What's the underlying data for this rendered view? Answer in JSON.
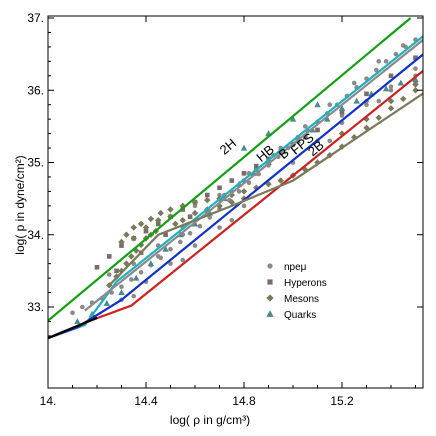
{
  "chart_data": {
    "type": "scatter",
    "xlabel": "log( ρ in g/cm³)",
    "ylabel": "log( p in dyne/cm²)",
    "xlim": [
      14.0,
      15.55
    ],
    "ylim": [
      32.5,
      37.0
    ],
    "xticks": [
      {
        "value": 14.0,
        "label": "14."
      },
      {
        "value": 14.4,
        "label": "14.4"
      },
      {
        "value": 14.8,
        "label": "14.8"
      },
      {
        "value": 15.2,
        "label": "15.2"
      }
    ],
    "yticks": [
      {
        "value": 33,
        "label": "33."
      },
      {
        "value": 34,
        "label": "34."
      },
      {
        "value": 35,
        "label": "35."
      },
      {
        "value": 36,
        "label": "36."
      },
      {
        "value": 37,
        "label": "37."
      }
    ],
    "legend": {
      "placement": "bottom-right",
      "entries": [
        {
          "label": "npeμ",
          "marker": "circle",
          "color": "#8a8a8a"
        },
        {
          "label": "Hyperons",
          "marker": "square",
          "color": "#7a6a6a"
        },
        {
          "label": "Mesons",
          "marker": "diamond",
          "color": "#7a7a5a"
        },
        {
          "label": "Quarks",
          "marker": "triangle",
          "color": "#4a8a8a"
        }
      ]
    },
    "annotations": [
      {
        "text": "2H",
        "x": 14.72,
        "y": 35.1
      },
      {
        "text": "HB",
        "x": 14.87,
        "y": 35.0
      },
      {
        "text": "B",
        "x": 14.96,
        "y": 35.04
      },
      {
        "text": "FPS",
        "x": 15.01,
        "y": 35.1
      },
      {
        "text": "2B",
        "x": 15.08,
        "y": 35.08
      }
    ],
    "lines": [
      {
        "name": "",
        "color": "#11a011",
        "points": [
          [
            14.0,
            32.81
          ],
          [
            15.48,
            37.0
          ]
        ]
      },
      {
        "name": "",
        "color": "#1fb0c0",
        "points": [
          [
            14.0,
            32.57
          ],
          [
            14.15,
            32.75
          ],
          [
            14.28,
            33.35
          ],
          [
            15.55,
            36.8
          ]
        ]
      },
      {
        "name": "",
        "color": "#1030d0",
        "points": [
          [
            14.0,
            32.57
          ],
          [
            14.12,
            32.72
          ],
          [
            14.3,
            33.1
          ],
          [
            15.55,
            36.55
          ]
        ]
      },
      {
        "name": "",
        "color": "#d02020",
        "points": [
          [
            14.0,
            32.57
          ],
          [
            14.18,
            32.82
          ],
          [
            14.34,
            33.02
          ],
          [
            15.55,
            36.32
          ]
        ]
      },
      {
        "name": "",
        "color": "#000000",
        "points": [
          [
            14.0,
            32.57
          ],
          [
            14.2,
            32.85
          ]
        ]
      },
      {
        "name": "",
        "color": "#8a8a8a",
        "points": [
          [
            14.15,
            32.95
          ],
          [
            15.55,
            36.75
          ]
        ]
      },
      {
        "name": "",
        "color": "#7a7a5a",
        "points": [
          [
            14.25,
            33.3
          ],
          [
            14.45,
            34.0
          ],
          [
            14.75,
            34.4
          ],
          [
            15.0,
            34.75
          ],
          [
            15.55,
            36.0
          ]
        ]
      }
    ],
    "series": [
      {
        "name": "npeμ",
        "marker": "circle",
        "color": "#8a8a8a",
        "points": [
          [
            14.1,
            32.92
          ],
          [
            14.14,
            33.0
          ],
          [
            14.18,
            33.06
          ],
          [
            14.22,
            33.12
          ],
          [
            14.26,
            33.2
          ],
          [
            14.3,
            33.28
          ],
          [
            14.34,
            33.38
          ],
          [
            14.38,
            33.48
          ],
          [
            14.42,
            33.58
          ],
          [
            14.46,
            33.68
          ],
          [
            14.5,
            33.8
          ],
          [
            14.54,
            33.9
          ],
          [
            14.58,
            34.02
          ],
          [
            14.62,
            34.12
          ],
          [
            14.66,
            34.24
          ],
          [
            14.7,
            34.36
          ],
          [
            14.74,
            34.48
          ],
          [
            14.78,
            34.6
          ],
          [
            14.82,
            34.72
          ],
          [
            14.86,
            34.84
          ],
          [
            14.9,
            34.96
          ],
          [
            14.94,
            35.08
          ],
          [
            14.98,
            35.2
          ],
          [
            15.02,
            35.32
          ],
          [
            15.06,
            35.44
          ],
          [
            15.1,
            35.56
          ],
          [
            15.14,
            35.68
          ],
          [
            15.18,
            35.8
          ],
          [
            15.22,
            35.92
          ],
          [
            15.26,
            36.04
          ],
          [
            15.3,
            36.16
          ],
          [
            15.34,
            36.28
          ],
          [
            15.38,
            36.4
          ],
          [
            15.42,
            36.5
          ],
          [
            15.46,
            36.6
          ],
          [
            15.5,
            36.7
          ],
          [
            14.3,
            33.1
          ],
          [
            14.4,
            33.35
          ],
          [
            14.5,
            33.6
          ],
          [
            14.6,
            33.85
          ],
          [
            14.7,
            34.1
          ],
          [
            14.8,
            34.4
          ],
          [
            14.9,
            34.7
          ],
          [
            15.0,
            35.0
          ],
          [
            15.1,
            35.3
          ],
          [
            15.2,
            35.55
          ],
          [
            15.3,
            35.8
          ],
          [
            15.4,
            36.05
          ],
          [
            15.5,
            36.3
          ],
          [
            14.45,
            33.7
          ],
          [
            14.55,
            34.0
          ],
          [
            14.65,
            34.3
          ],
          [
            14.75,
            34.6
          ],
          [
            14.85,
            34.9
          ],
          [
            14.95,
            35.2
          ],
          [
            15.05,
            35.5
          ],
          [
            15.15,
            35.8
          ],
          [
            15.25,
            36.1
          ],
          [
            15.35,
            36.4
          ],
          [
            15.45,
            36.62
          ],
          [
            14.35,
            33.15
          ],
          [
            14.55,
            33.65
          ],
          [
            14.75,
            34.2
          ],
          [
            14.95,
            34.75
          ],
          [
            15.15,
            35.3
          ],
          [
            15.35,
            35.85
          ],
          [
            15.5,
            36.2
          ],
          [
            14.6,
            34.4
          ],
          [
            14.7,
            34.55
          ],
          [
            14.8,
            34.75
          ],
          [
            14.9,
            35.0
          ],
          [
            15.0,
            35.25
          ],
          [
            15.1,
            35.45
          ],
          [
            15.2,
            35.65
          ],
          [
            15.3,
            35.85
          ],
          [
            15.4,
            36.0
          ],
          [
            15.5,
            36.1
          ],
          [
            14.25,
            33.45
          ],
          [
            14.35,
            33.6
          ],
          [
            14.45,
            33.85
          ],
          [
            14.55,
            34.1
          ],
          [
            14.65,
            34.35
          ],
          [
            14.72,
            34.55
          ],
          [
            14.82,
            34.85
          ],
          [
            14.92,
            35.1
          ],
          [
            15.02,
            35.35
          ]
        ]
      },
      {
        "name": "Hyperons",
        "marker": "square",
        "color": "#7a6a6a",
        "points": [
          [
            14.2,
            33.55
          ],
          [
            14.25,
            33.7
          ],
          [
            14.3,
            33.85
          ],
          [
            14.35,
            33.95
          ],
          [
            14.4,
            34.05
          ],
          [
            14.45,
            34.15
          ],
          [
            14.5,
            34.25
          ],
          [
            14.55,
            34.35
          ],
          [
            14.6,
            34.45
          ],
          [
            14.65,
            34.55
          ],
          [
            14.7,
            34.65
          ],
          [
            14.75,
            34.75
          ],
          [
            14.8,
            34.85
          ],
          [
            14.85,
            34.95
          ],
          [
            14.9,
            35.05
          ],
          [
            14.95,
            35.15
          ],
          [
            15.0,
            35.25
          ],
          [
            15.05,
            35.35
          ],
          [
            15.1,
            35.45
          ],
          [
            15.2,
            35.7
          ],
          [
            15.3,
            35.95
          ],
          [
            15.4,
            36.2
          ],
          [
            15.5,
            36.45
          ],
          [
            14.28,
            33.5
          ],
          [
            14.38,
            33.75
          ],
          [
            14.48,
            34.0
          ],
          [
            14.58,
            34.25
          ]
        ]
      },
      {
        "name": "Mesons",
        "marker": "diamond",
        "color": "#7a7a5a",
        "points": [
          [
            14.25,
            33.3
          ],
          [
            14.28,
            33.42
          ],
          [
            14.3,
            33.5
          ],
          [
            14.32,
            33.6
          ],
          [
            14.34,
            33.7
          ],
          [
            14.36,
            33.78
          ],
          [
            14.38,
            33.86
          ],
          [
            14.4,
            33.95
          ],
          [
            14.42,
            34.0
          ],
          [
            14.44,
            34.05
          ],
          [
            14.3,
            33.9
          ],
          [
            14.32,
            34.0
          ],
          [
            14.35,
            34.1
          ],
          [
            14.38,
            34.15
          ],
          [
            14.42,
            34.22
          ],
          [
            14.46,
            34.3
          ],
          [
            14.5,
            34.35
          ],
          [
            14.55,
            34.4
          ],
          [
            14.6,
            34.45
          ],
          [
            14.65,
            34.48
          ],
          [
            14.7,
            34.5
          ],
          [
            14.75,
            34.55
          ],
          [
            14.8,
            34.6
          ],
          [
            14.85,
            34.65
          ],
          [
            14.9,
            34.7
          ],
          [
            14.95,
            34.75
          ],
          [
            15.0,
            34.82
          ],
          [
            15.05,
            34.9
          ],
          [
            15.1,
            35.0
          ],
          [
            15.15,
            35.1
          ],
          [
            15.2,
            35.22
          ],
          [
            15.25,
            35.35
          ],
          [
            15.3,
            35.48
          ],
          [
            15.35,
            35.62
          ],
          [
            15.4,
            35.75
          ],
          [
            15.45,
            35.88
          ],
          [
            15.5,
            36.0
          ],
          [
            14.55,
            34.2
          ],
          [
            14.6,
            34.3
          ],
          [
            14.65,
            34.35
          ],
          [
            14.7,
            34.4
          ],
          [
            14.75,
            34.45
          ],
          [
            14.8,
            34.5
          ],
          [
            15.2,
            35.4
          ],
          [
            15.3,
            35.6
          ],
          [
            15.4,
            35.85
          ],
          [
            15.5,
            36.08
          ],
          [
            14.35,
            33.95
          ],
          [
            14.4,
            34.1
          ],
          [
            14.45,
            34.2
          ],
          [
            14.5,
            34.25
          ],
          [
            14.52,
            34.15
          ]
        ]
      },
      {
        "name": "Quarks",
        "marker": "triangle",
        "color": "#4a8a8a",
        "points": [
          [
            14.12,
            32.8
          ],
          [
            14.18,
            32.9
          ],
          [
            14.24,
            33.05
          ],
          [
            14.3,
            33.2
          ],
          [
            14.36,
            33.4
          ],
          [
            14.42,
            33.6
          ],
          [
            14.48,
            33.8
          ],
          [
            14.54,
            34.0
          ],
          [
            14.6,
            34.15
          ],
          [
            14.66,
            34.3
          ],
          [
            14.72,
            34.5
          ],
          [
            14.78,
            34.7
          ],
          [
            14.84,
            34.85
          ],
          [
            14.9,
            35.0
          ],
          [
            14.96,
            35.15
          ],
          [
            15.02,
            35.3
          ],
          [
            15.08,
            35.45
          ],
          [
            15.14,
            35.6
          ],
          [
            15.2,
            35.75
          ],
          [
            15.26,
            35.85
          ],
          [
            15.32,
            35.95
          ],
          [
            15.38,
            36.02
          ],
          [
            15.44,
            36.1
          ],
          [
            15.5,
            36.15
          ],
          [
            14.8,
            35.2
          ],
          [
            14.9,
            35.4
          ],
          [
            15.0,
            35.6
          ],
          [
            15.1,
            35.8
          ]
        ]
      }
    ]
  }
}
